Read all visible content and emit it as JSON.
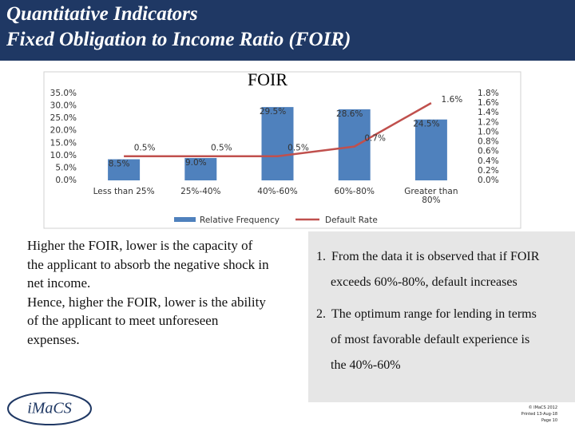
{
  "header": {
    "lines": [
      "Quantitative Indicators",
      "Fixed Obligation to Income Ratio (FOIR)"
    ]
  },
  "chart_data": {
    "type": "bar-line",
    "title": "FOIR",
    "categories": [
      "Less than 25%",
      "25%-40%",
      "40%-60%",
      "60%-80%",
      "Greater than 80%"
    ],
    "series": [
      {
        "name": "Relative Frequency",
        "type": "bar",
        "color": "#4f81bd",
        "values": [
          8.5,
          9.0,
          29.5,
          28.6,
          24.5
        ],
        "value_labels": [
          "8.5%",
          "9.0%",
          "29.5%",
          "28.6%",
          "24.5%"
        ]
      },
      {
        "name": "Default Rate",
        "type": "line",
        "axis": "y2",
        "color": "#c0504d",
        "values": [
          0.5,
          0.5,
          0.5,
          0.7,
          1.6
        ],
        "value_labels": [
          "0.5%",
          "0.5%",
          "0.5%",
          "0.7%",
          "1.6%"
        ]
      }
    ],
    "ylim": [
      0,
      35
    ],
    "yticks": [
      {
        "value": 0,
        "label": "0.0%"
      },
      {
        "value": 5,
        "label": "5.0%"
      },
      {
        "value": 10,
        "label": "10.0%"
      },
      {
        "value": 15,
        "label": "15.0%"
      },
      {
        "value": 20,
        "label": "20.0%"
      },
      {
        "value": 25,
        "label": "25.0%"
      },
      {
        "value": 30,
        "label": "30.0%"
      },
      {
        "value": 35,
        "label": "35.0%"
      }
    ],
    "y2lim": [
      0,
      1.8
    ],
    "y2ticks": [
      {
        "value": 0,
        "label": "0.0%"
      },
      {
        "value": 0.2,
        "label": "0.2%"
      },
      {
        "value": 0.4,
        "label": "0.4%"
      },
      {
        "value": 0.6,
        "label": "0.6%"
      },
      {
        "value": 0.8,
        "label": "0.8%"
      },
      {
        "value": 1.0,
        "label": "1.0%"
      },
      {
        "value": 1.2,
        "label": "1.2%"
      },
      {
        "value": 1.4,
        "label": "1.4%"
      },
      {
        "value": 1.6,
        "label": "1.6%"
      },
      {
        "value": 1.8,
        "label": "1.8%"
      }
    ],
    "legend": "bottom"
  },
  "left_text": {
    "lines": [
      "Higher the FOIR, lower is the capacity of",
      "the applicant to absorb the negative shock in",
      "net income.",
      "Hence, higher the FOIR, lower is the ability",
      "of the applicant to meet unforeseen",
      "expenses."
    ]
  },
  "right_list": {
    "items": [
      {
        "number": "1.",
        "lines": [
          "From the data it is observed that if  FOIR",
          "exceeds  60%-80%, default increases"
        ]
      },
      {
        "number": "2.",
        "lines": [
          "The optimum range for lending in terms",
          "of most favorable default experience is",
          "the 40%-60%"
        ]
      }
    ]
  },
  "logo": "iMaCS",
  "footer": {
    "lines": [
      "© IMaCS 2012",
      "Printed 13-Aug-18",
      "Page 10"
    ]
  }
}
